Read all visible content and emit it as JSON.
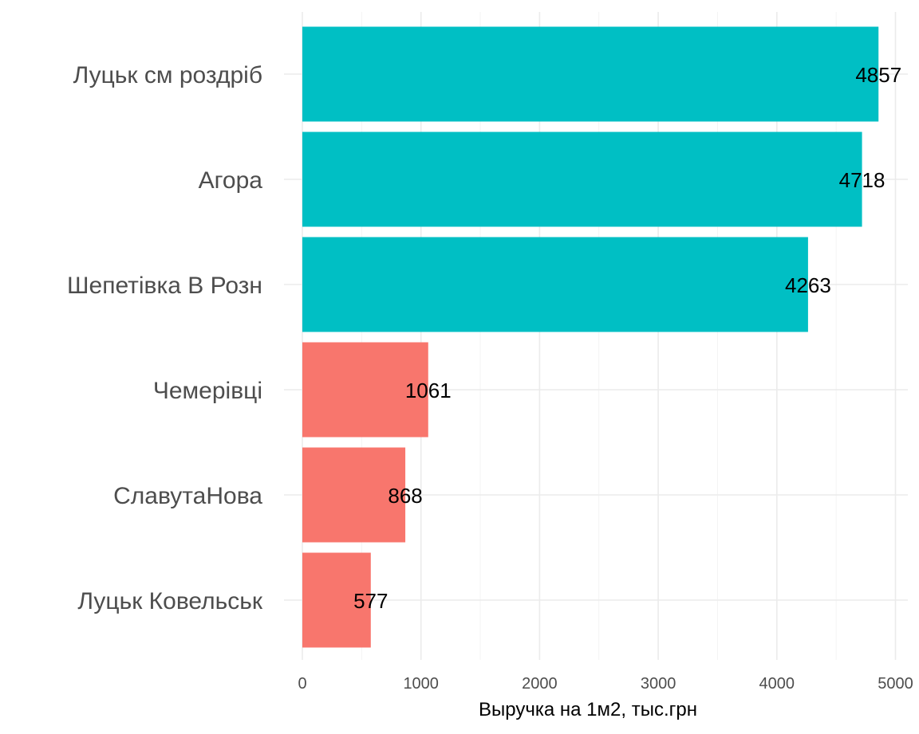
{
  "chart_data": {
    "type": "bar",
    "orientation": "horizontal",
    "categories": [
      "Луцьк см роздріб",
      "Агора",
      "Шепетівка В Розн",
      "Чемерівці",
      "СлавутаНова",
      "Луцьк Ковельськ"
    ],
    "values": [
      4857,
      4718,
      4263,
      1061,
      868,
      577
    ],
    "data_labels": [
      "4857",
      "4718",
      "4263",
      "1061",
      "868",
      "577"
    ],
    "bar_colors": [
      "#00BFC4",
      "#00BFC4",
      "#00BFC4",
      "#F8766D",
      "#F8766D",
      "#F8766D"
    ],
    "xlabel": "Выручка на 1м2, тыс.грн",
    "ylabel": "",
    "xlim": [
      0,
      5100
    ],
    "xticks": [
      0,
      1000,
      2000,
      3000,
      4000,
      5000
    ],
    "xtick_labels": [
      "0",
      "1000",
      "2000",
      "3000",
      "4000",
      "5000"
    ],
    "grid": true,
    "legend": "none"
  }
}
